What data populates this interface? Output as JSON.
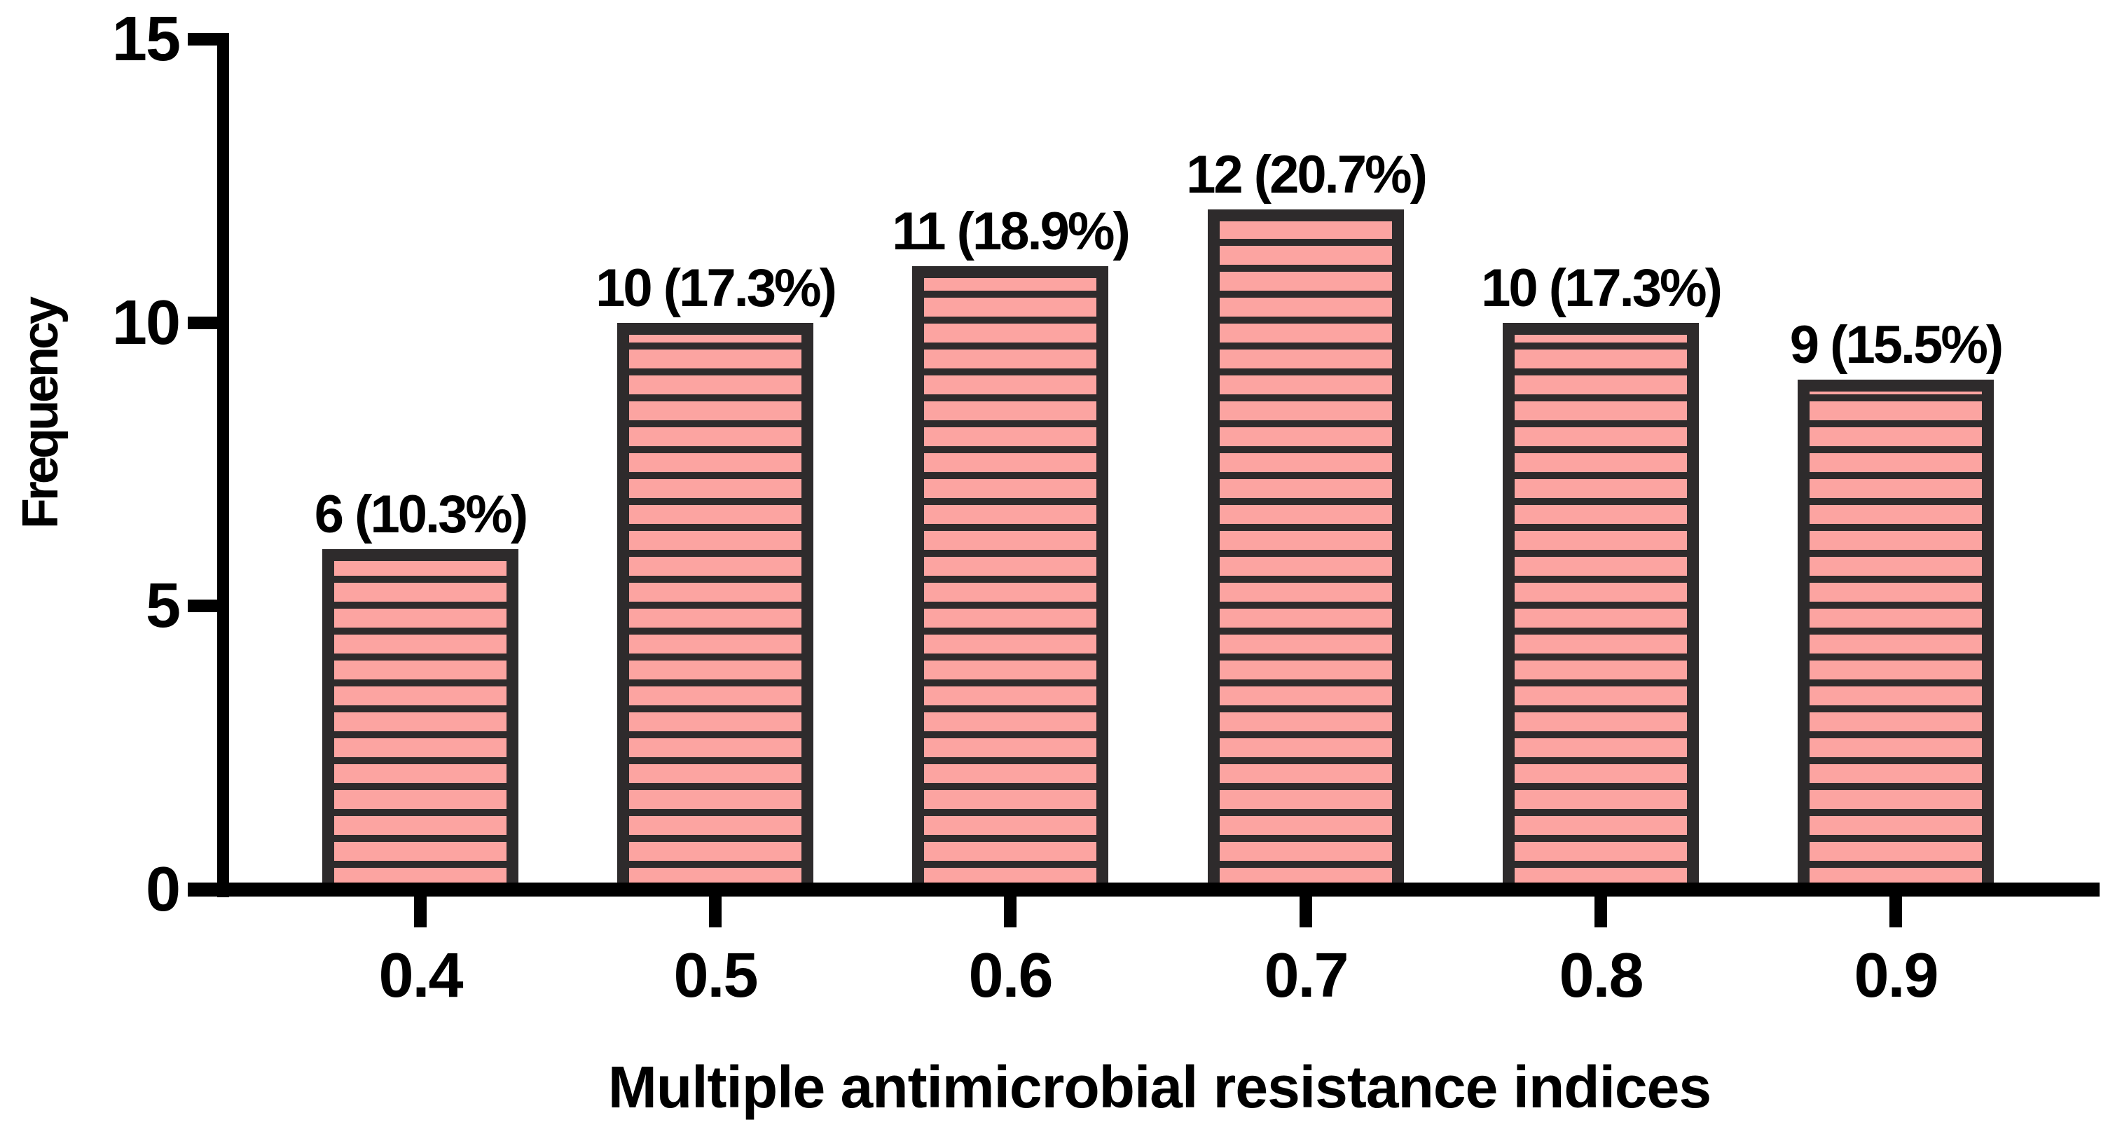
{
  "chart_data": {
    "type": "bar",
    "title": "",
    "xlabel": "Multiple antimicrobial resistance indices",
    "ylabel": "Frequency",
    "categories": [
      "0.4",
      "0.5",
      "0.6",
      "0.7",
      "0.8",
      "0.9"
    ],
    "values": [
      6,
      10,
      11,
      12,
      10,
      9
    ],
    "bar_labels": [
      "6 (10.3%)",
      "10 (17.3%)",
      "11 (18.9%)",
      "12 (20.7%)",
      "10 (17.3%)",
      "9 (15.5%)"
    ],
    "ytick_values": [
      0,
      5,
      10,
      15
    ],
    "ytick_labels": [
      "0",
      "5",
      "10",
      "15"
    ],
    "ylim": [
      0,
      15
    ],
    "grid": "off",
    "legend": "none",
    "colors": {
      "bar_fill": "#fca4a1",
      "bar_border": "#2e2b2c",
      "axis": "#000000",
      "background": "#ffffff"
    },
    "pattern": "horizontal-stripes"
  }
}
